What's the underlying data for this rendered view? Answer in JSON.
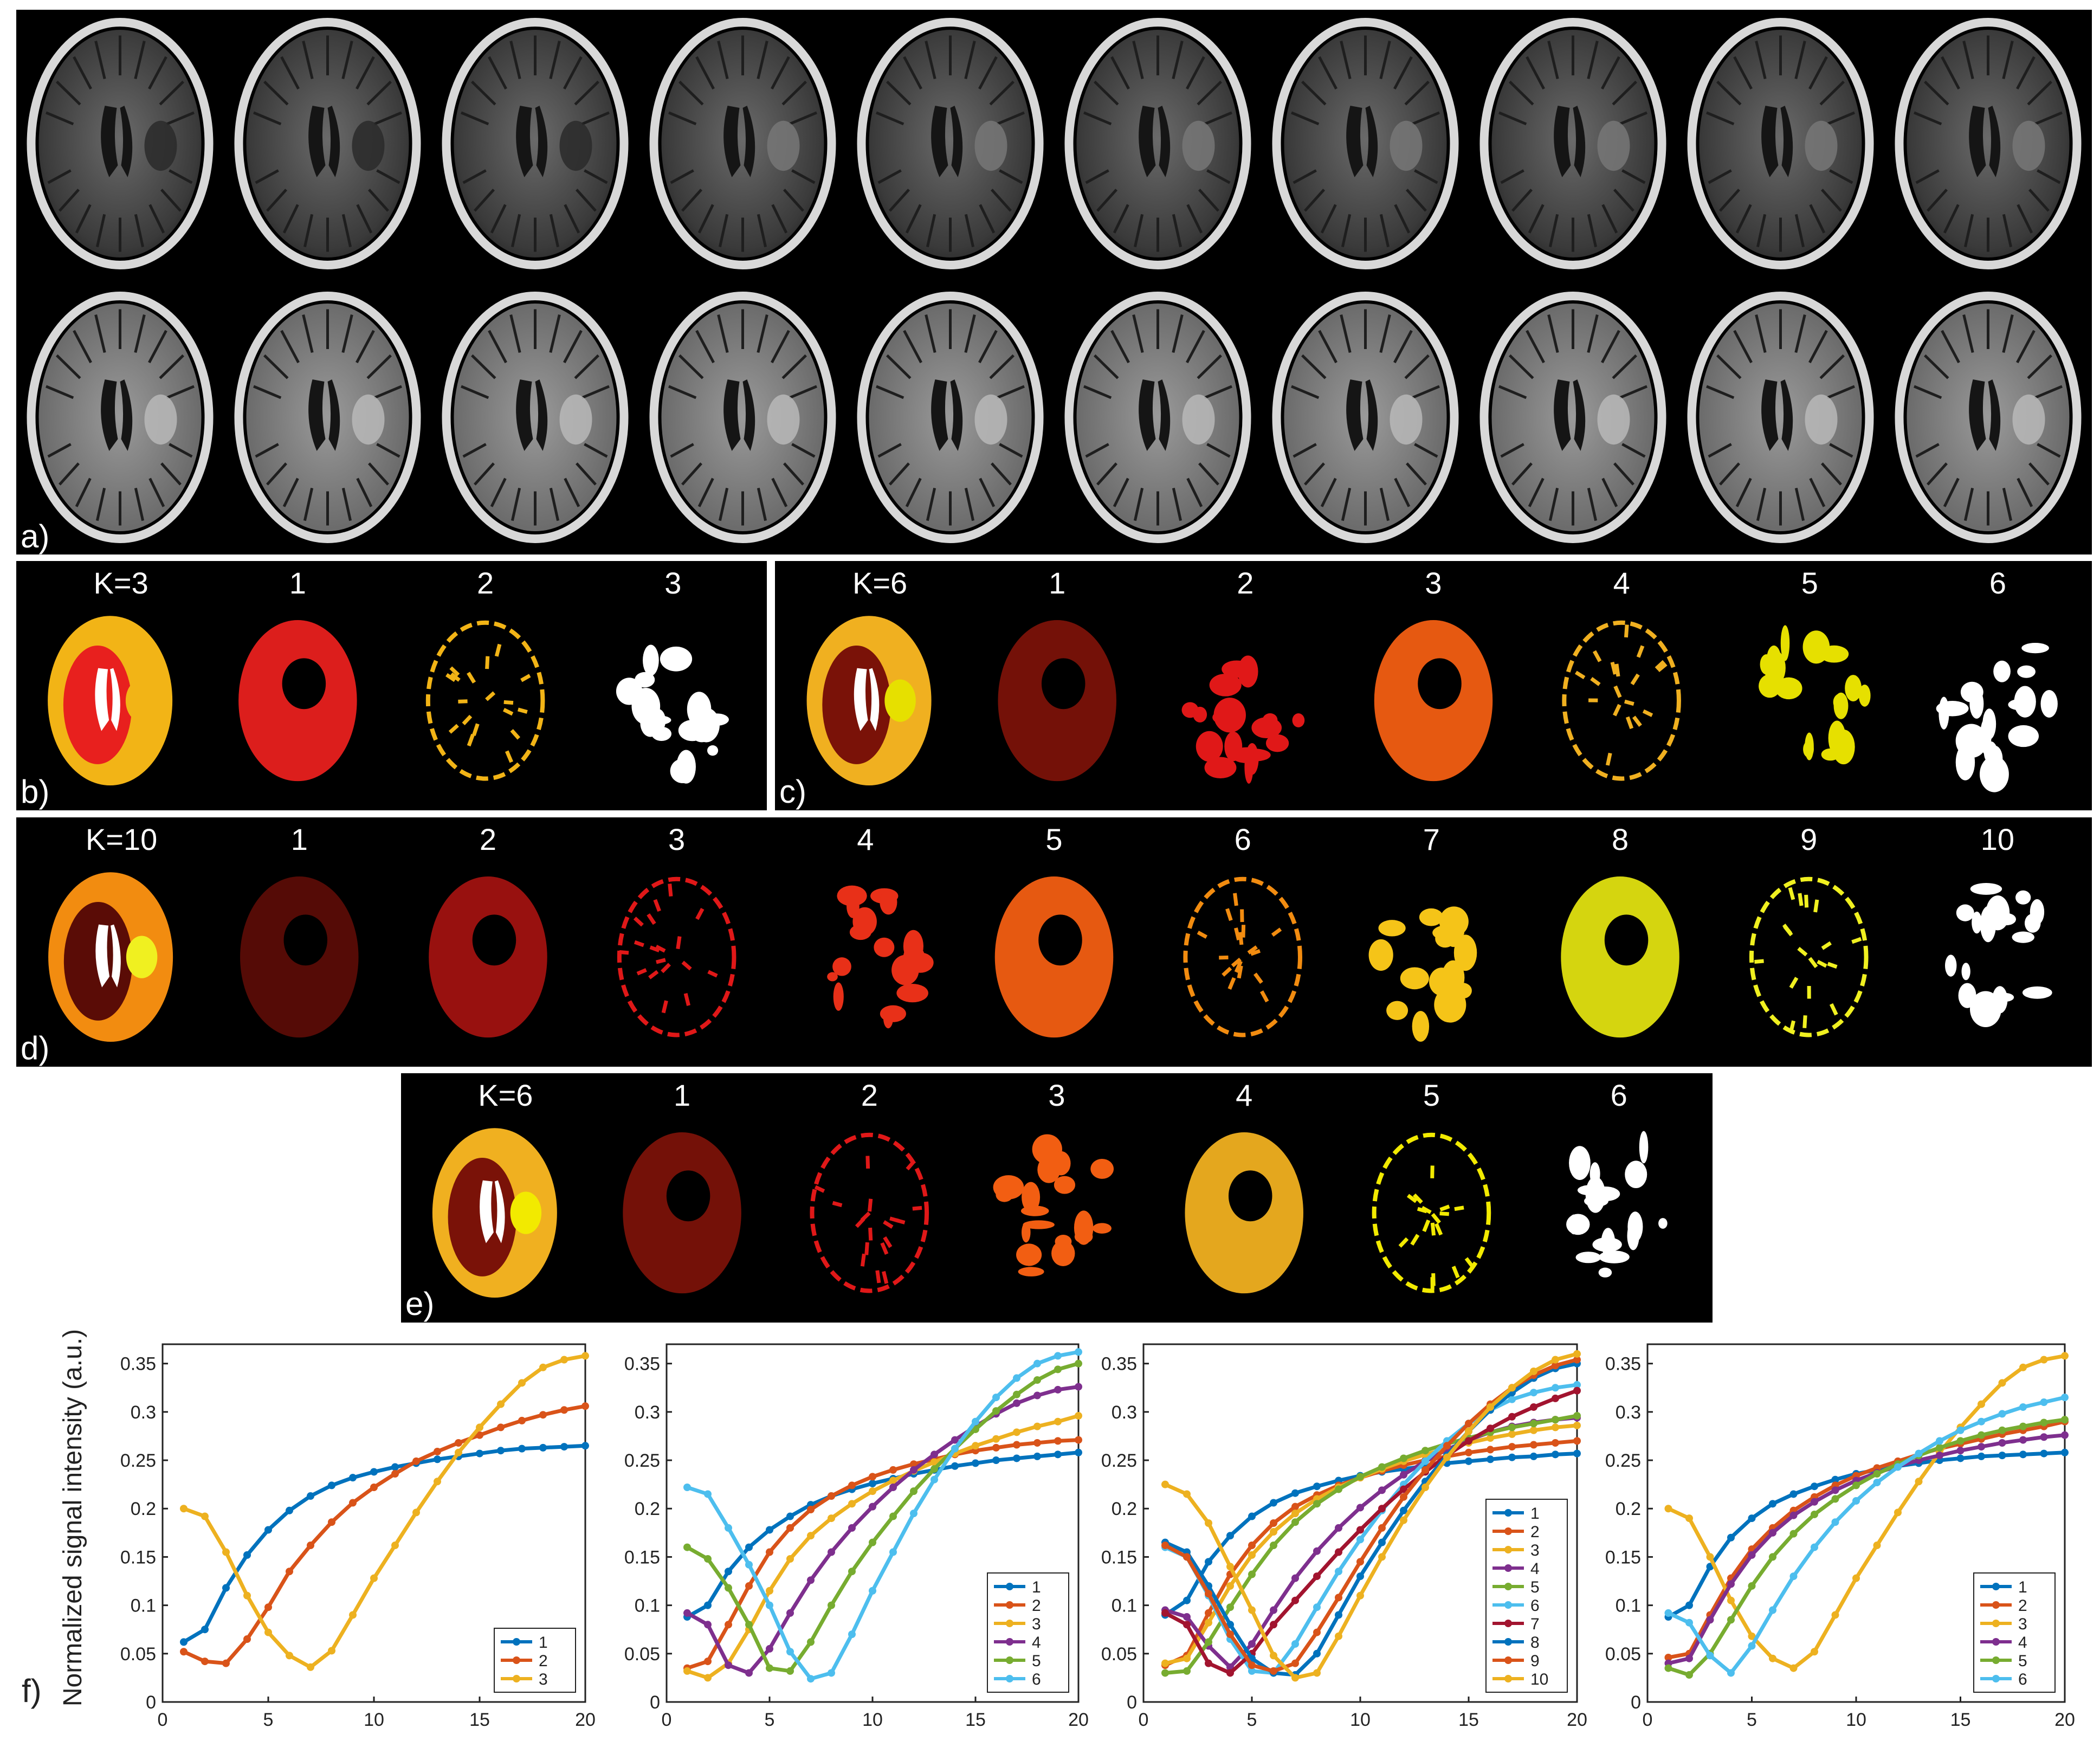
{
  "figure": {
    "panel_a": {
      "label": "a)",
      "rows": 2,
      "frames_per_row": 10
    },
    "panels": [
      {
        "id": "b",
        "label": "b)",
        "k_label": "K=3",
        "cluster_labels": [
          "1",
          "2",
          "3"
        ],
        "colors": [
          "#e8201e",
          "#f2b416",
          "#ffffff"
        ]
      },
      {
        "id": "c",
        "label": "c)",
        "k_label": "K=6",
        "cluster_labels": [
          "1",
          "2",
          "3",
          "4",
          "5",
          "6"
        ],
        "colors": [
          "#7a1208",
          "#e01818",
          "#f25e12",
          "#f0b020",
          "#e6e000",
          "#ffffff"
        ]
      },
      {
        "id": "d",
        "label": "d)",
        "k_label": "K=10",
        "cluster_labels": [
          "1",
          "2",
          "3",
          "4",
          "5",
          "6",
          "7",
          "8",
          "9",
          "10"
        ],
        "colors": [
          "#5a0c06",
          "#a01210",
          "#e01818",
          "#e83018",
          "#f25e12",
          "#f28c10",
          "#f5c418",
          "#e0e010",
          "#f0f020",
          "#ffffff"
        ]
      },
      {
        "id": "e",
        "label": "e)",
        "k_label": "K=6",
        "cluster_labels": [
          "1",
          "2",
          "3",
          "4",
          "5",
          "6"
        ],
        "colors": [
          "#7a1208",
          "#e01818",
          "#f25e12",
          "#f0b020",
          "#f2ea00",
          "#ffffff"
        ]
      }
    ],
    "panel_f_label": "f)"
  },
  "chart_data": [
    {
      "type": "line",
      "ylabel": "Normalized signal intensity (a.u.)",
      "xlim": [
        0,
        20
      ],
      "ylim": [
        0,
        0.37
      ],
      "xticks": [
        "0",
        "5",
        "10",
        "15",
        "20"
      ],
      "yticks": [
        "0",
        "0.05",
        "0.1",
        "0.15",
        "0.2",
        "0.25",
        "0.3",
        "0.35"
      ],
      "legend_position": "bottom-right",
      "x": [
        1,
        2,
        3,
        4,
        5,
        6,
        7,
        8,
        9,
        10,
        11,
        12,
        13,
        14,
        15,
        16,
        17,
        18,
        19,
        20
      ],
      "series": [
        {
          "name": "1",
          "color": "#0072bd",
          "values": [
            0.062,
            0.075,
            0.118,
            0.152,
            0.178,
            0.198,
            0.213,
            0.224,
            0.232,
            0.238,
            0.243,
            0.247,
            0.251,
            0.254,
            0.257,
            0.26,
            0.262,
            0.263,
            0.264,
            0.265
          ]
        },
        {
          "name": "2",
          "color": "#d95319",
          "values": [
            0.052,
            0.042,
            0.04,
            0.065,
            0.098,
            0.135,
            0.162,
            0.186,
            0.206,
            0.222,
            0.236,
            0.249,
            0.259,
            0.268,
            0.276,
            0.284,
            0.291,
            0.297,
            0.302,
            0.306
          ]
        },
        {
          "name": "3",
          "color": "#edb120",
          "values": [
            0.2,
            0.192,
            0.155,
            0.11,
            0.072,
            0.048,
            0.036,
            0.053,
            0.09,
            0.128,
            0.162,
            0.196,
            0.228,
            0.258,
            0.284,
            0.308,
            0.33,
            0.346,
            0.354,
            0.358
          ]
        }
      ]
    },
    {
      "type": "line",
      "xlim": [
        0,
        20
      ],
      "ylim": [
        0,
        0.37
      ],
      "xticks": [
        "0",
        "5",
        "10",
        "15",
        "20"
      ],
      "yticks": [
        "0",
        "0.05",
        "0.1",
        "0.15",
        "0.2",
        "0.25",
        "0.3",
        "0.35"
      ],
      "legend_position": "bottom-right",
      "x": [
        1,
        2,
        3,
        4,
        5,
        6,
        7,
        8,
        9,
        10,
        11,
        12,
        13,
        14,
        15,
        16,
        17,
        18,
        19,
        20
      ],
      "series": [
        {
          "name": "1",
          "color": "#0072bd",
          "values": [
            0.088,
            0.1,
            0.135,
            0.16,
            0.178,
            0.192,
            0.204,
            0.213,
            0.22,
            0.226,
            0.231,
            0.236,
            0.24,
            0.244,
            0.247,
            0.25,
            0.252,
            0.254,
            0.256,
            0.258
          ]
        },
        {
          "name": "2",
          "color": "#d95319",
          "values": [
            0.035,
            0.042,
            0.08,
            0.12,
            0.155,
            0.18,
            0.199,
            0.213,
            0.224,
            0.233,
            0.24,
            0.246,
            0.251,
            0.256,
            0.26,
            0.263,
            0.266,
            0.268,
            0.27,
            0.271
          ]
        },
        {
          "name": "3",
          "color": "#edb120",
          "values": [
            0.032,
            0.025,
            0.04,
            0.075,
            0.115,
            0.148,
            0.172,
            0.19,
            0.205,
            0.218,
            0.229,
            0.239,
            0.248,
            0.257,
            0.265,
            0.272,
            0.279,
            0.285,
            0.29,
            0.296
          ]
        },
        {
          "name": "4",
          "color": "#7e2f8e",
          "values": [
            0.092,
            0.08,
            0.038,
            0.03,
            0.055,
            0.092,
            0.126,
            0.155,
            0.18,
            0.202,
            0.222,
            0.24,
            0.256,
            0.271,
            0.285,
            0.298,
            0.309,
            0.317,
            0.323,
            0.326
          ]
        },
        {
          "name": "5",
          "color": "#77ac30",
          "values": [
            0.16,
            0.148,
            0.118,
            0.08,
            0.035,
            0.032,
            0.062,
            0.1,
            0.135,
            0.165,
            0.192,
            0.218,
            0.241,
            0.262,
            0.282,
            0.301,
            0.318,
            0.333,
            0.344,
            0.35
          ]
        },
        {
          "name": "6",
          "color": "#4dbeee",
          "values": [
            0.222,
            0.215,
            0.18,
            0.142,
            0.1,
            0.052,
            0.024,
            0.03,
            0.07,
            0.115,
            0.155,
            0.195,
            0.23,
            0.262,
            0.29,
            0.315,
            0.335,
            0.35,
            0.358,
            0.362
          ]
        }
      ]
    },
    {
      "type": "line",
      "xlim": [
        0,
        20
      ],
      "ylim": [
        0,
        0.37
      ],
      "xticks": [
        "0",
        "5",
        "10",
        "15",
        "20"
      ],
      "yticks": [
        "0",
        "0.05",
        "0.1",
        "0.15",
        "0.2",
        "0.25",
        "0.3",
        "0.35"
      ],
      "legend_position": "bottom-right",
      "x": [
        1,
        2,
        3,
        4,
        5,
        6,
        7,
        8,
        9,
        10,
        11,
        12,
        13,
        14,
        15,
        16,
        17,
        18,
        19,
        20
      ],
      "series": [
        {
          "name": "1",
          "color": "#0072bd",
          "values": [
            0.09,
            0.105,
            0.145,
            0.172,
            0.192,
            0.206,
            0.216,
            0.223,
            0.229,
            0.234,
            0.238,
            0.241,
            0.244,
            0.247,
            0.249,
            0.251,
            0.253,
            0.254,
            0.256,
            0.257
          ]
        },
        {
          "name": "2",
          "color": "#d95319",
          "values": [
            0.038,
            0.048,
            0.092,
            0.132,
            0.162,
            0.185,
            0.202,
            0.214,
            0.224,
            0.232,
            0.239,
            0.245,
            0.25,
            0.254,
            0.258,
            0.261,
            0.264,
            0.266,
            0.268,
            0.27
          ]
        },
        {
          "name": "3",
          "color": "#edb120",
          "values": [
            0.04,
            0.045,
            0.082,
            0.12,
            0.152,
            0.176,
            0.195,
            0.21,
            0.222,
            0.232,
            0.241,
            0.249,
            0.256,
            0.262,
            0.268,
            0.273,
            0.277,
            0.281,
            0.284,
            0.286
          ]
        },
        {
          "name": "4",
          "color": "#7e2f8e",
          "values": [
            0.095,
            0.088,
            0.058,
            0.036,
            0.06,
            0.095,
            0.128,
            0.156,
            0.18,
            0.201,
            0.219,
            0.235,
            0.249,
            0.261,
            0.271,
            0.279,
            0.285,
            0.289,
            0.292,
            0.294
          ]
        },
        {
          "name": "5",
          "color": "#77ac30",
          "values": [
            0.03,
            0.032,
            0.062,
            0.098,
            0.132,
            0.162,
            0.186,
            0.205,
            0.22,
            0.233,
            0.243,
            0.252,
            0.26,
            0.267,
            0.273,
            0.279,
            0.284,
            0.288,
            0.292,
            0.296
          ]
        },
        {
          "name": "6",
          "color": "#4dbeee",
          "values": [
            0.16,
            0.15,
            0.11,
            0.065,
            0.032,
            0.03,
            0.06,
            0.098,
            0.135,
            0.168,
            0.198,
            0.225,
            0.249,
            0.27,
            0.288,
            0.302,
            0.313,
            0.32,
            0.325,
            0.328
          ]
        },
        {
          "name": "7",
          "color": "#a2142f",
          "values": [
            0.092,
            0.08,
            0.04,
            0.03,
            0.05,
            0.08,
            0.105,
            0.13,
            0.155,
            0.178,
            0.2,
            0.22,
            0.238,
            0.255,
            0.27,
            0.283,
            0.295,
            0.305,
            0.314,
            0.322
          ]
        },
        {
          "name": "8",
          "color": "#0072bd",
          "values": [
            0.165,
            0.155,
            0.12,
            0.08,
            0.045,
            0.03,
            0.028,
            0.05,
            0.09,
            0.13,
            0.165,
            0.198,
            0.228,
            0.255,
            0.28,
            0.302,
            0.32,
            0.335,
            0.345,
            0.35
          ]
        },
        {
          "name": "9",
          "color": "#d95319",
          "values": [
            0.162,
            0.15,
            0.112,
            0.07,
            0.038,
            0.032,
            0.04,
            0.072,
            0.108,
            0.145,
            0.18,
            0.212,
            0.24,
            0.265,
            0.288,
            0.308,
            0.325,
            0.338,
            0.348,
            0.354
          ]
        },
        {
          "name": "10",
          "color": "#edb120",
          "values": [
            0.225,
            0.215,
            0.185,
            0.14,
            0.095,
            0.048,
            0.025,
            0.03,
            0.068,
            0.11,
            0.15,
            0.188,
            0.222,
            0.253,
            0.28,
            0.305,
            0.325,
            0.342,
            0.354,
            0.36
          ]
        }
      ]
    },
    {
      "type": "line",
      "xlim": [
        0,
        20
      ],
      "ylim": [
        0,
        0.37
      ],
      "xticks": [
        "0",
        "5",
        "10",
        "15",
        "20"
      ],
      "yticks": [
        "0",
        "0.05",
        "0.1",
        "0.15",
        "0.2",
        "0.25",
        "0.3",
        "0.35"
      ],
      "legend_position": "bottom-right",
      "x": [
        1,
        2,
        3,
        4,
        5,
        6,
        7,
        8,
        9,
        10,
        11,
        12,
        13,
        14,
        15,
        16,
        17,
        18,
        19,
        20
      ],
      "series": [
        {
          "name": "1",
          "color": "#0072bd",
          "values": [
            0.088,
            0.1,
            0.14,
            0.17,
            0.19,
            0.205,
            0.215,
            0.223,
            0.23,
            0.236,
            0.24,
            0.244,
            0.247,
            0.25,
            0.252,
            0.254,
            0.255,
            0.256,
            0.257,
            0.258
          ]
        },
        {
          "name": "2",
          "color": "#d95319",
          "values": [
            0.046,
            0.05,
            0.09,
            0.128,
            0.158,
            0.18,
            0.198,
            0.212,
            0.224,
            0.234,
            0.242,
            0.249,
            0.256,
            0.262,
            0.267,
            0.272,
            0.277,
            0.281,
            0.285,
            0.29
          ]
        },
        {
          "name": "3",
          "color": "#edb120",
          "values": [
            0.2,
            0.19,
            0.15,
            0.105,
            0.068,
            0.045,
            0.035,
            0.052,
            0.09,
            0.128,
            0.162,
            0.196,
            0.228,
            0.258,
            0.284,
            0.308,
            0.33,
            0.346,
            0.354,
            0.358
          ]
        },
        {
          "name": "4",
          "color": "#7e2f8e",
          "values": [
            0.04,
            0.045,
            0.085,
            0.122,
            0.152,
            0.175,
            0.193,
            0.207,
            0.219,
            0.229,
            0.237,
            0.244,
            0.25,
            0.255,
            0.26,
            0.264,
            0.268,
            0.271,
            0.274,
            0.276
          ]
        },
        {
          "name": "5",
          "color": "#77ac30",
          "values": [
            0.035,
            0.028,
            0.05,
            0.085,
            0.12,
            0.15,
            0.174,
            0.194,
            0.21,
            0.224,
            0.236,
            0.246,
            0.255,
            0.263,
            0.27,
            0.276,
            0.281,
            0.285,
            0.289,
            0.292
          ]
        },
        {
          "name": "6",
          "color": "#4dbeee",
          "values": [
            0.092,
            0.082,
            0.048,
            0.03,
            0.058,
            0.095,
            0.13,
            0.16,
            0.186,
            0.208,
            0.227,
            0.243,
            0.257,
            0.27,
            0.281,
            0.29,
            0.298,
            0.305,
            0.31,
            0.315
          ]
        }
      ]
    }
  ]
}
